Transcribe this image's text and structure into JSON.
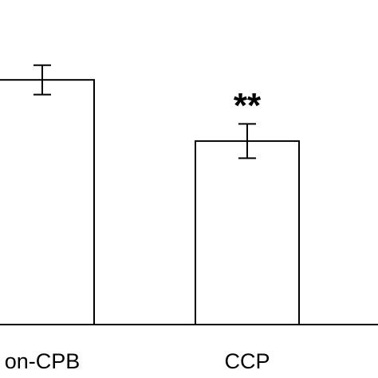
{
  "chart_data": {
    "type": "bar",
    "categories": [
      "on-CPB",
      "CCP"
    ],
    "values": [
      100,
      75
    ],
    "errors": [
      6,
      7
    ],
    "annotations": [
      null,
      "**"
    ],
    "color": "#ffffff",
    "ylim": [
      0,
      132
    ]
  }
}
